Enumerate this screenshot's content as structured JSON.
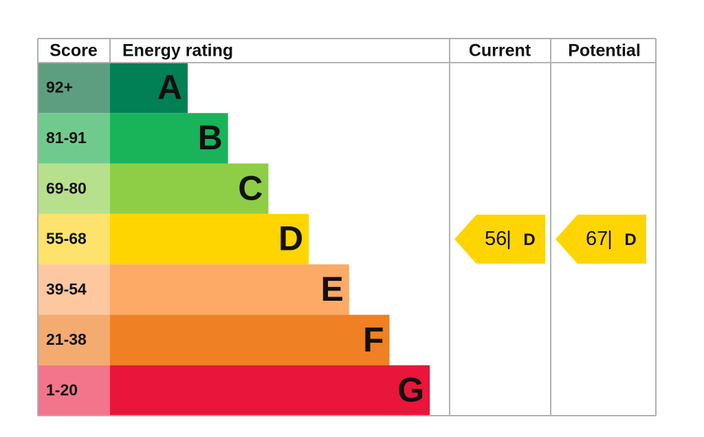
{
  "header": {
    "score": "Score",
    "energy_rating": "Energy rating",
    "current": "Current",
    "potential": "Potential"
  },
  "bands": [
    {
      "score": "92+",
      "letter": "A",
      "color": "#008054",
      "score_color": "#5e9e80"
    },
    {
      "score": "81-91",
      "letter": "B",
      "color": "#19b459",
      "score_color": "#6fcb8d"
    },
    {
      "score": "69-80",
      "letter": "C",
      "color": "#8dce46",
      "score_color": "#b7e08d"
    },
    {
      "score": "55-68",
      "letter": "D",
      "color": "#ffd500",
      "score_color": "#fde26c"
    },
    {
      "score": "39-54",
      "letter": "E",
      "color": "#fcaa65",
      "score_color": "#fdc8a0"
    },
    {
      "score": "21-38",
      "letter": "F",
      "color": "#ef8023",
      "score_color": "#f3ab70"
    },
    {
      "score": "1-20",
      "letter": "G",
      "color": "#e9153b",
      "score_color": "#f2758c"
    }
  ],
  "current": {
    "score": "56",
    "separator": "|",
    "rating": "D"
  },
  "potential": {
    "score": "67",
    "separator": "|",
    "rating": "D"
  }
}
